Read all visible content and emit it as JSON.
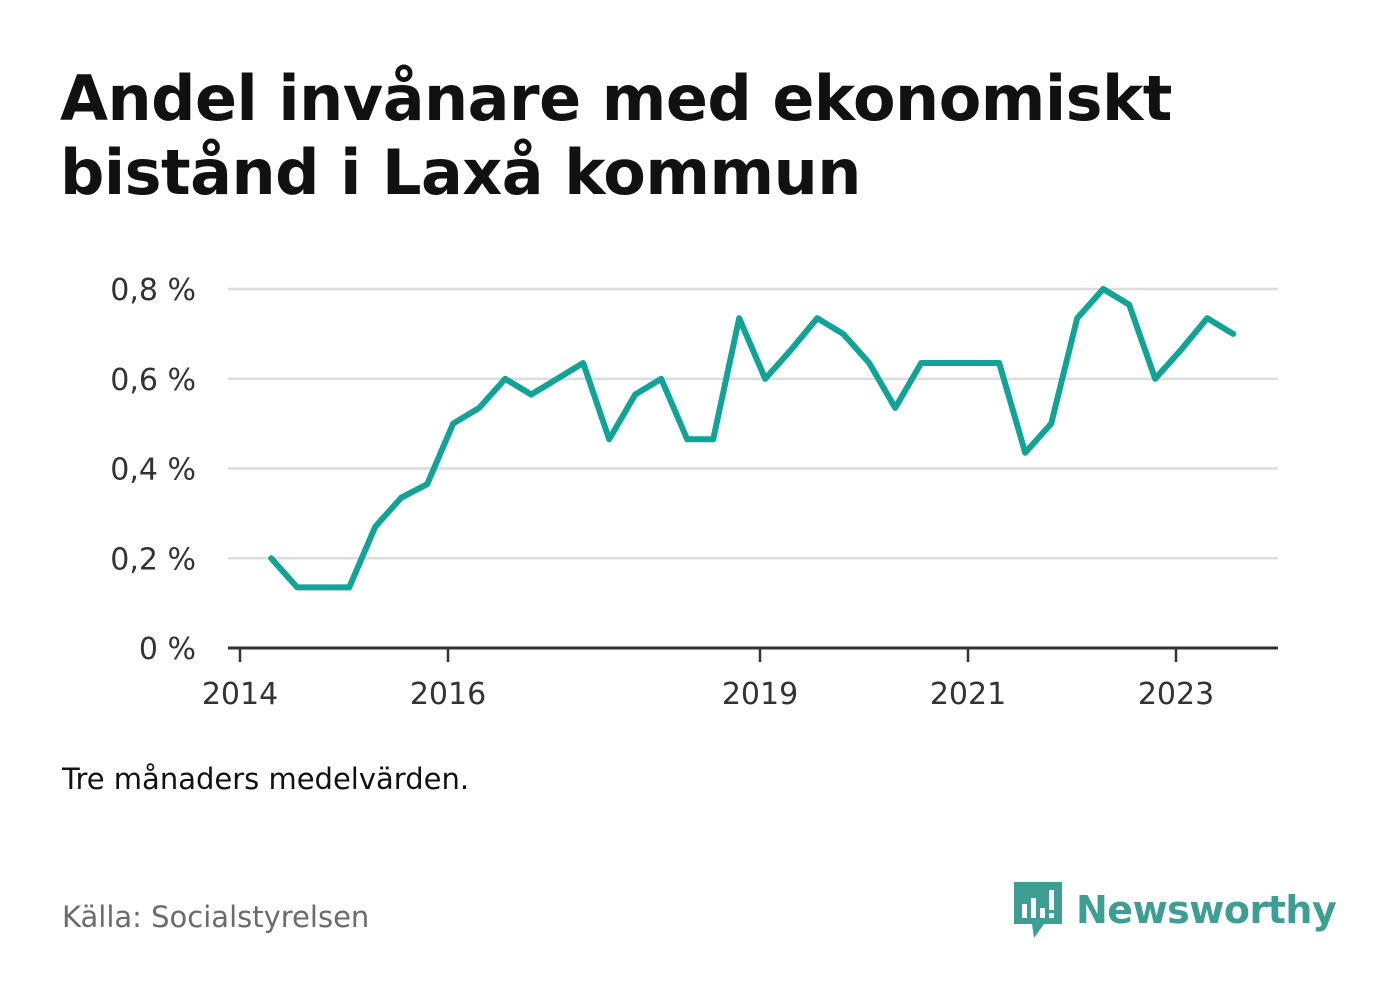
{
  "title": "Andel invånare med ekonomiskt bistånd i Laxå kommun",
  "note": "Tre månaders medelvärden.",
  "source": "Källa: Socialstyrelsen",
  "brand": {
    "name": "Newsworthy",
    "color": "#3f9e93",
    "icon": "speech-bubble-bar-chart-icon"
  },
  "chart_data": {
    "type": "line",
    "title": "Andel invånare med ekonomiskt bistånd i Laxå kommun",
    "xlabel": "",
    "ylabel": "",
    "xlim": [
      2014.0,
      2024.1
    ],
    "ylim": [
      0,
      0.8
    ],
    "grid": true,
    "x_ticks": [
      2014,
      2016,
      2019,
      2021,
      2023
    ],
    "x_tick_labels": [
      "2014",
      "2016",
      "2019",
      "2021",
      "2023"
    ],
    "y_ticks": [
      0,
      0.2,
      0.4,
      0.6,
      0.8
    ],
    "y_tick_labels": [
      "0 %",
      "0,2 %",
      "0,4 %",
      "0,6 %",
      "0,8 %"
    ],
    "line_color": "#11a396",
    "series": [
      {
        "x": [
          2014.3,
          2014.55,
          2014.8,
          2015.05,
          2015.3,
          2015.55,
          2015.8,
          2016.05,
          2016.3,
          2016.55,
          2016.8,
          2017.05,
          2017.3,
          2017.55,
          2017.8,
          2018.05,
          2018.3,
          2018.55,
          2018.8,
          2019.05,
          2019.3,
          2019.55,
          2019.8,
          2020.05,
          2020.3,
          2020.55,
          2020.8,
          2021.05,
          2021.3,
          2021.55,
          2021.8,
          2022.05,
          2022.3,
          2022.55,
          2022.8,
          2023.05,
          2023.3,
          2023.55
        ],
        "y": [
          0.2,
          0.135,
          0.135,
          0.135,
          0.27,
          0.335,
          0.365,
          0.5,
          0.535,
          0.6,
          0.565,
          0.6,
          0.635,
          0.465,
          0.565,
          0.6,
          0.465,
          0.465,
          0.735,
          0.6,
          0.665,
          0.735,
          0.7,
          0.635,
          0.535,
          0.635,
          0.635,
          0.635,
          0.635,
          0.435,
          0.5,
          0.735,
          0.8,
          0.765,
          0.6,
          0.665,
          0.735,
          0.7
        ]
      }
    ]
  }
}
